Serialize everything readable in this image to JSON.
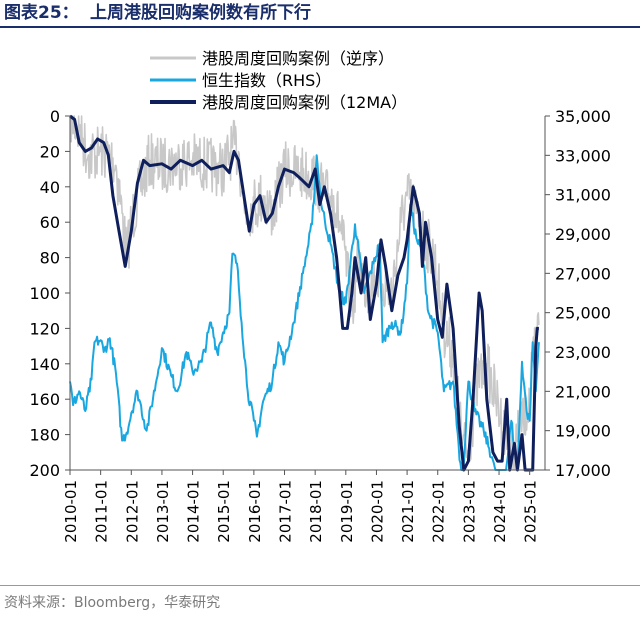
{
  "figure": {
    "label": "图表25：",
    "title": "上周港股回购案例数有所下行",
    "source": "资料来源：Bloomberg，华泰研究"
  },
  "chart_data": {
    "type": "line",
    "x_ticks": [
      "2010-01",
      "2011-01",
      "2012-01",
      "2013-01",
      "2014-01",
      "2015-01",
      "2016-01",
      "2017-01",
      "2018-01",
      "2019-01",
      "2020-01",
      "2021-01",
      "2022-01",
      "2023-01",
      "2024-01",
      "2025-01"
    ],
    "xlim": [
      2010.0,
      2025.5
    ],
    "y_left": {
      "ticks": [
        "0",
        "20",
        "40",
        "60",
        "80",
        "100",
        "120",
        "140",
        "160",
        "180",
        "200"
      ],
      "range": [
        0,
        200
      ],
      "reversed": true
    },
    "y_right": {
      "ticks": [
        "35,000",
        "33,000",
        "31,000",
        "29,000",
        "27,000",
        "25,000",
        "23,000",
        "21,000",
        "19,000",
        "17,000"
      ],
      "range": [
        17000,
        35000
      ]
    },
    "legend": {
      "placement": "top-center"
    },
    "series": [
      {
        "name": "港股周度回购案例（逆序）",
        "axis": "left",
        "color": "#c8c8c8",
        "noise": 16,
        "points": [
          [
            2010.0,
            0
          ],
          [
            2010.3,
            8
          ],
          [
            2010.6,
            22
          ],
          [
            2011.0,
            20
          ],
          [
            2011.3,
            22
          ],
          [
            2011.5,
            28
          ],
          [
            2011.7,
            55
          ],
          [
            2011.85,
            80
          ],
          [
            2012.0,
            60
          ],
          [
            2012.3,
            40
          ],
          [
            2012.6,
            25
          ],
          [
            2013.0,
            28
          ],
          [
            2013.5,
            26
          ],
          [
            2014.0,
            25
          ],
          [
            2014.5,
            28
          ],
          [
            2015.0,
            30
          ],
          [
            2015.3,
            18
          ],
          [
            2015.5,
            20
          ],
          [
            2015.7,
            55
          ],
          [
            2016.0,
            50
          ],
          [
            2016.3,
            45
          ],
          [
            2016.6,
            55
          ],
          [
            2017.0,
            30
          ],
          [
            2017.5,
            32
          ],
          [
            2018.0,
            35
          ],
          [
            2018.3,
            45
          ],
          [
            2018.6,
            45
          ],
          [
            2018.9,
            70
          ],
          [
            2019.2,
            110
          ],
          [
            2019.4,
            80
          ],
          [
            2019.7,
            100
          ],
          [
            2020.0,
            90
          ],
          [
            2020.2,
            95
          ],
          [
            2020.5,
            100
          ],
          [
            2020.8,
            60
          ],
          [
            2021.0,
            45
          ],
          [
            2021.3,
            55
          ],
          [
            2021.6,
            70
          ],
          [
            2021.9,
            80
          ],
          [
            2022.2,
            120
          ],
          [
            2022.5,
            135
          ],
          [
            2022.8,
            185
          ],
          [
            2023.0,
            190
          ],
          [
            2023.3,
            150
          ],
          [
            2023.6,
            140
          ],
          [
            2023.9,
            160
          ],
          [
            2024.2,
            180
          ],
          [
            2024.5,
            190
          ],
          [
            2024.8,
            170
          ],
          [
            2025.0,
            160
          ],
          [
            2025.2,
            125
          ],
          [
            2025.3,
            118
          ]
        ]
      },
      {
        "name": "恒生指数（RHS）",
        "axis": "right",
        "color": "#1aa7e0",
        "noise": 300,
        "points": [
          [
            2010.0,
            21500
          ],
          [
            2010.1,
            20300
          ],
          [
            2010.3,
            21000
          ],
          [
            2010.5,
            20000
          ],
          [
            2010.7,
            21600
          ],
          [
            2010.8,
            23500
          ],
          [
            2011.0,
            23600
          ],
          [
            2011.1,
            23000
          ],
          [
            2011.3,
            23700
          ],
          [
            2011.5,
            21900
          ],
          [
            2011.7,
            18500
          ],
          [
            2011.85,
            18900
          ],
          [
            2012.0,
            19900
          ],
          [
            2012.2,
            21000
          ],
          [
            2012.5,
            19000
          ],
          [
            2012.8,
            21400
          ],
          [
            2013.0,
            23200
          ],
          [
            2013.3,
            21800
          ],
          [
            2013.5,
            21000
          ],
          [
            2013.8,
            23000
          ],
          [
            2014.0,
            22000
          ],
          [
            2014.3,
            22500
          ],
          [
            2014.6,
            24500
          ],
          [
            2014.8,
            23000
          ],
          [
            2015.0,
            24000
          ],
          [
            2015.2,
            25000
          ],
          [
            2015.3,
            28000
          ],
          [
            2015.45,
            27500
          ],
          [
            2015.6,
            24500
          ],
          [
            2015.8,
            21000
          ],
          [
            2016.0,
            19500
          ],
          [
            2016.1,
            18700
          ],
          [
            2016.3,
            20500
          ],
          [
            2016.6,
            21500
          ],
          [
            2016.8,
            23500
          ],
          [
            2017.0,
            22500
          ],
          [
            2017.3,
            24500
          ],
          [
            2017.6,
            27000
          ],
          [
            2017.9,
            29500
          ],
          [
            2018.05,
            33000
          ],
          [
            2018.2,
            30500
          ],
          [
            2018.5,
            28500
          ],
          [
            2018.8,
            26000
          ],
          [
            2019.0,
            25500
          ],
          [
            2019.3,
            29500
          ],
          [
            2019.6,
            26000
          ],
          [
            2019.9,
            27500
          ],
          [
            2020.1,
            28500
          ],
          [
            2020.2,
            23500
          ],
          [
            2020.5,
            24500
          ],
          [
            2020.8,
            24000
          ],
          [
            2021.0,
            26500
          ],
          [
            2021.1,
            30500
          ],
          [
            2021.3,
            28800
          ],
          [
            2021.5,
            28000
          ],
          [
            2021.7,
            25000
          ],
          [
            2022.0,
            24000
          ],
          [
            2022.2,
            21000
          ],
          [
            2022.5,
            21500
          ],
          [
            2022.8,
            16200
          ],
          [
            2023.0,
            21500
          ],
          [
            2023.2,
            20000
          ],
          [
            2023.5,
            19000
          ],
          [
            2023.8,
            17500
          ],
          [
            2024.0,
            15500
          ],
          [
            2024.2,
            16500
          ],
          [
            2024.4,
            19500
          ],
          [
            2024.6,
            17000
          ],
          [
            2024.75,
            22500
          ],
          [
            2024.9,
            20000
          ],
          [
            2025.0,
            19500
          ],
          [
            2025.1,
            23500
          ],
          [
            2025.2,
            21000
          ],
          [
            2025.3,
            23500
          ]
        ]
      },
      {
        "name": "港股周度回购案例（12MA）",
        "axis": "left",
        "color": "#0f1f5c",
        "noise": 0,
        "points": [
          [
            2010.0,
            0
          ],
          [
            2010.15,
            2
          ],
          [
            2010.3,
            15
          ],
          [
            2010.5,
            20
          ],
          [
            2010.7,
            18
          ],
          [
            2010.9,
            13
          ],
          [
            2011.1,
            15
          ],
          [
            2011.25,
            22
          ],
          [
            2011.4,
            45
          ],
          [
            2011.6,
            65
          ],
          [
            2011.8,
            85
          ],
          [
            2012.0,
            65
          ],
          [
            2012.2,
            38
          ],
          [
            2012.4,
            25
          ],
          [
            2012.6,
            28
          ],
          [
            2013.0,
            27
          ],
          [
            2013.3,
            30
          ],
          [
            2013.6,
            25
          ],
          [
            2014.0,
            28
          ],
          [
            2014.3,
            25
          ],
          [
            2014.6,
            30
          ],
          [
            2015.0,
            28
          ],
          [
            2015.2,
            32
          ],
          [
            2015.35,
            20
          ],
          [
            2015.5,
            25
          ],
          [
            2015.7,
            48
          ],
          [
            2015.85,
            65
          ],
          [
            2016.0,
            50
          ],
          [
            2016.2,
            45
          ],
          [
            2016.4,
            60
          ],
          [
            2016.6,
            55
          ],
          [
            2016.8,
            40
          ],
          [
            2017.0,
            30
          ],
          [
            2017.3,
            32
          ],
          [
            2017.5,
            35
          ],
          [
            2017.8,
            40
          ],
          [
            2018.0,
            30
          ],
          [
            2018.15,
            50
          ],
          [
            2018.3,
            40
          ],
          [
            2018.5,
            55
          ],
          [
            2018.7,
            80
          ],
          [
            2018.8,
            100
          ],
          [
            2018.9,
            120
          ],
          [
            2019.05,
            120
          ],
          [
            2019.2,
            100
          ],
          [
            2019.3,
            80
          ],
          [
            2019.5,
            100
          ],
          [
            2019.65,
            80
          ],
          [
            2019.8,
            115
          ],
          [
            2020.0,
            95
          ],
          [
            2020.15,
            70
          ],
          [
            2020.3,
            85
          ],
          [
            2020.5,
            110
          ],
          [
            2020.7,
            90
          ],
          [
            2020.9,
            80
          ],
          [
            2021.0,
            70
          ],
          [
            2021.2,
            40
          ],
          [
            2021.4,
            55
          ],
          [
            2021.5,
            85
          ],
          [
            2021.6,
            60
          ],
          [
            2021.8,
            80
          ],
          [
            2022.0,
            115
          ],
          [
            2022.15,
            125
          ],
          [
            2022.3,
            95
          ],
          [
            2022.5,
            120
          ],
          [
            2022.7,
            175
          ],
          [
            2022.85,
            200
          ],
          [
            2023.0,
            195
          ],
          [
            2023.15,
            160
          ],
          [
            2023.35,
            100
          ],
          [
            2023.45,
            110
          ],
          [
            2023.6,
            160
          ],
          [
            2023.8,
            190
          ],
          [
            2023.95,
            195
          ],
          [
            2024.1,
            195
          ],
          [
            2024.25,
            160
          ],
          [
            2024.35,
            200
          ],
          [
            2024.5,
            185
          ],
          [
            2024.6,
            200
          ],
          [
            2024.75,
            180
          ],
          [
            2024.85,
            200
          ],
          [
            2024.95,
            200
          ],
          [
            2025.1,
            200
          ],
          [
            2025.2,
            130
          ],
          [
            2025.25,
            120
          ],
          [
            2025.3,
            120
          ]
        ]
      }
    ]
  }
}
